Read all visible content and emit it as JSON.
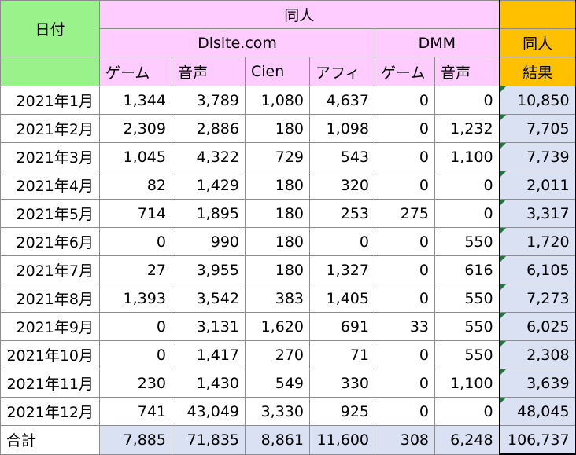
{
  "header": {
    "date_label": "日付",
    "doujin_label": "同人",
    "dlsite_label": "Dlsite.com",
    "dmm_label": "DMM",
    "doujin_result_top": "同人",
    "result_label": "結果",
    "cols": [
      "ゲーム",
      "音声",
      "Cien",
      "アフィ",
      "ゲーム",
      "音声"
    ]
  },
  "rows": [
    {
      "date": "2021年1月",
      "v": [
        "1,344",
        "3,789",
        "1,080",
        "4,637",
        "0",
        "0"
      ],
      "result": "10,850"
    },
    {
      "date": "2021年2月",
      "v": [
        "2,309",
        "2,886",
        "180",
        "1,098",
        "0",
        "1,232"
      ],
      "result": "7,705"
    },
    {
      "date": "2021年3月",
      "v": [
        "1,045",
        "4,322",
        "729",
        "543",
        "0",
        "1,100"
      ],
      "result": "7,739"
    },
    {
      "date": "2021年4月",
      "v": [
        "82",
        "1,429",
        "180",
        "320",
        "0",
        "0"
      ],
      "result": "2,011"
    },
    {
      "date": "2021年5月",
      "v": [
        "714",
        "1,895",
        "180",
        "253",
        "275",
        "0"
      ],
      "result": "3,317"
    },
    {
      "date": "2021年6月",
      "v": [
        "0",
        "990",
        "180",
        "0",
        "0",
        "550"
      ],
      "result": "1,720"
    },
    {
      "date": "2021年7月",
      "v": [
        "27",
        "3,955",
        "180",
        "1,327",
        "0",
        "616"
      ],
      "result": "6,105"
    },
    {
      "date": "2021年8月",
      "v": [
        "1,393",
        "3,542",
        "383",
        "1,405",
        "0",
        "550"
      ],
      "result": "7,273"
    },
    {
      "date": "2021年9月",
      "v": [
        "0",
        "3,131",
        "1,620",
        "691",
        "33",
        "550"
      ],
      "result": "6,025"
    },
    {
      "date": "2021年10月",
      "v": [
        "0",
        "1,417",
        "270",
        "71",
        "0",
        "550"
      ],
      "result": "2,308"
    },
    {
      "date": "2021年11月",
      "v": [
        "230",
        "1,430",
        "549",
        "330",
        "0",
        "1,100"
      ],
      "result": "3,639"
    },
    {
      "date": "2021年12月",
      "v": [
        "741",
        "43,049",
        "3,330",
        "925",
        "0",
        "0"
      ],
      "result": "48,045"
    }
  ],
  "total": {
    "label": "合計",
    "v": [
      "7,885",
      "71,835",
      "8,861",
      "11,600",
      "308",
      "6,248"
    ],
    "result": "106,737"
  },
  "colors": {
    "date_header": "#99f28a",
    "doujin_header": "#ffccff",
    "result_header": "#ffc000",
    "result_cells": "#d9e1f2",
    "error_marker": "#1a7a3a"
  }
}
